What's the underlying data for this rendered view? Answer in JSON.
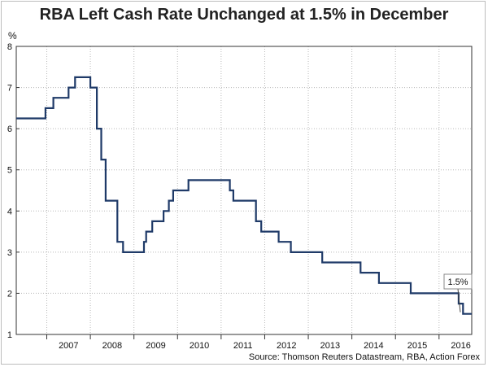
{
  "chart_data": {
    "type": "line",
    "title": "RBA Left Cash Rate Unchanged at 1.5% in December",
    "ylabel": "%",
    "xlabel": "",
    "source": "Source: Thomson Reuters Datastream, RBA, Action Forex",
    "ylim": [
      1,
      8
    ],
    "yticks": [
      1,
      2,
      3,
      4,
      5,
      6,
      7,
      8
    ],
    "xlim": [
      2006.3,
      2016.75
    ],
    "xticks": [
      "2007",
      "2008",
      "2009",
      "2010",
      "2011",
      "2012",
      "2013",
      "2014",
      "2015",
      "2016"
    ],
    "grid": true,
    "line_color": "#1f3a68",
    "annotation": {
      "label": "1.5%",
      "x": 2016.75,
      "y": 1.5
    },
    "series": [
      {
        "step": true,
        "x": [
          2006.3,
          2006.97,
          2007.15,
          2007.5,
          2007.65,
          2007.72,
          2008.0,
          2008.02,
          2008.15,
          2008.25,
          2008.35,
          2008.5,
          2008.62,
          2008.75,
          2009.1,
          2009.23,
          2009.28,
          2009.42,
          2009.68,
          2009.8,
          2009.9,
          2010.12,
          2010.25,
          2011.2,
          2011.28,
          2011.8,
          2011.92,
          2012.2,
          2012.32,
          2012.6,
          2012.95,
          2013.32,
          2014.2,
          2014.62,
          2015.35,
          2016.45,
          2016.55,
          2016.75
        ],
        "y": [
          6.25,
          6.5,
          6.75,
          7.0,
          7.25,
          7.25,
          7.0,
          7.0,
          6.0,
          5.25,
          4.25,
          4.25,
          3.25,
          3.0,
          3.0,
          3.25,
          3.5,
          3.75,
          4.0,
          4.25,
          4.5,
          4.5,
          4.75,
          4.5,
          4.25,
          3.75,
          3.5,
          3.5,
          3.25,
          3.0,
          3.0,
          2.75,
          2.5,
          2.25,
          2.0,
          1.75,
          1.5,
          1.5
        ]
      }
    ]
  }
}
